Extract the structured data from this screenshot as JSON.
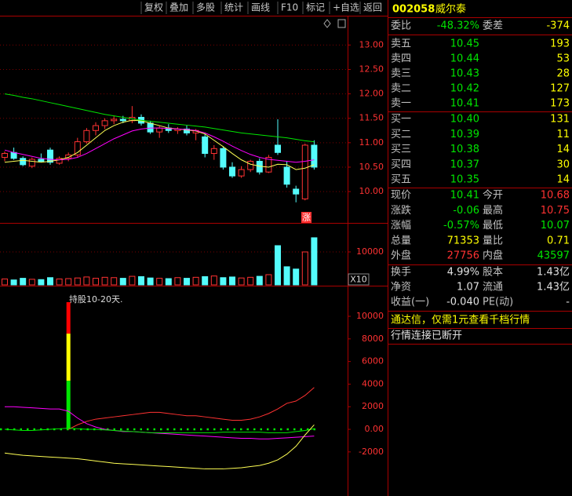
{
  "toolbar": [
    "复权",
    "叠加",
    "多股",
    "统计",
    "画线",
    "F10",
    "标记",
    "+自选",
    "返回"
  ],
  "quote": {
    "code": "002058",
    "name": "威尔泰",
    "ratio": {
      "label": "委比",
      "value": "-48.32%",
      "label2": "委差",
      "value2": "-374"
    },
    "asks": [
      {
        "label": "卖五",
        "price": "10.45",
        "volume": "193"
      },
      {
        "label": "卖四",
        "price": "10.44",
        "volume": "53"
      },
      {
        "label": "卖三",
        "price": "10.43",
        "volume": "28"
      },
      {
        "label": "卖二",
        "price": "10.42",
        "volume": "127"
      },
      {
        "label": "卖一",
        "price": "10.41",
        "volume": "173"
      }
    ],
    "bids": [
      {
        "label": "买一",
        "price": "10.40",
        "volume": "131"
      },
      {
        "label": "买二",
        "price": "10.39",
        "volume": "11"
      },
      {
        "label": "买三",
        "price": "10.38",
        "volume": "14"
      },
      {
        "label": "买四",
        "price": "10.37",
        "volume": "30"
      },
      {
        "label": "买五",
        "price": "10.35",
        "volume": "14"
      }
    ],
    "stats": [
      {
        "label": "现价",
        "value": "10.41",
        "label2": "今开",
        "value2": "10.68"
      },
      {
        "label": "涨跌",
        "value": "-0.06",
        "label2": "最高",
        "value2": "10.75"
      },
      {
        "label": "涨幅",
        "value": "-0.57%",
        "label2": "最低",
        "value2": "10.07"
      },
      {
        "label": "总量",
        "value": "71353",
        "label2": "量比",
        "value2": "0.71"
      },
      {
        "label": "外盘",
        "value": "27756",
        "label2": "内盘",
        "value2": "43597"
      }
    ],
    "info": [
      {
        "label": "换手",
        "value": "4.99%",
        "label2": "股本",
        "value2": "1.43亿"
      },
      {
        "label": "净资",
        "value": "1.07",
        "label2": "流通",
        "value2": "1.43亿"
      },
      {
        "label": "收益(一)",
        "value": "-0.040",
        "label2": "PE(动)",
        "value2": "-"
      }
    ],
    "messages": [
      "通达信，仅需1元查看千档行情",
      "行情连接已断开"
    ]
  },
  "price_chart": {
    "type": "candlestick",
    "ylim": [
      9.375,
      13.6
    ],
    "yticks": [
      {
        "value": 13,
        "label": "13.00"
      },
      {
        "value": 12.5,
        "label": "12.50"
      },
      {
        "value": 12,
        "label": "12.00"
      },
      {
        "value": 11.5,
        "label": "11.50"
      },
      {
        "value": 11,
        "label": "11.00"
      },
      {
        "value": 10.5,
        "label": "10.50"
      },
      {
        "value": 10,
        "label": "10.00"
      }
    ],
    "grid": true,
    "up_color": "#ff3232",
    "down_color": "#54fcfc",
    "marker": "涨",
    "open": [
      10.7,
      10.8,
      10.68,
      10.52,
      10.66,
      10.85,
      10.58,
      10.68,
      10.75,
      11.02,
      11.25,
      11.35,
      11.45,
      11.48,
      11.45,
      11.52,
      11.4,
      11.22,
      11.3,
      11.25,
      11.28,
      11.2,
      11.12,
      10.78,
      10.88,
      10.5,
      10.32,
      10.45,
      10.62,
      10.4,
      10.95,
      10.5,
      10.05,
      9.85,
      10.95
    ],
    "high": [
      10.82,
      10.9,
      10.72,
      10.7,
      10.78,
      10.9,
      10.72,
      10.8,
      11.1,
      11.3,
      11.42,
      11.5,
      11.55,
      11.55,
      11.75,
      11.58,
      11.45,
      11.35,
      11.38,
      11.32,
      11.35,
      11.28,
      11.18,
      10.95,
      10.92,
      10.6,
      10.52,
      10.65,
      10.68,
      10.75,
      11.48,
      10.62,
      10.12,
      10.98,
      11.05
    ],
    "low": [
      10.62,
      10.65,
      10.52,
      10.48,
      10.6,
      10.55,
      10.55,
      10.62,
      10.7,
      10.98,
      11.15,
      11.28,
      11.38,
      11.4,
      11.4,
      11.35,
      11.18,
      11.1,
      11.2,
      11.18,
      11.15,
      11.05,
      10.7,
      10.65,
      10.45,
      10.28,
      10.28,
      10.4,
      10.35,
      10.38,
      10.75,
      10.08,
      9.78,
      9.82,
      10.45
    ],
    "close": [
      10.78,
      10.68,
      10.55,
      10.66,
      10.62,
      10.6,
      10.68,
      10.75,
      11.02,
      11.25,
      11.35,
      11.45,
      11.48,
      11.45,
      11.52,
      11.4,
      11.22,
      11.3,
      11.25,
      11.28,
      11.2,
      11.25,
      10.78,
      10.88,
      10.5,
      10.32,
      10.45,
      10.62,
      10.4,
      10.7,
      10.8,
      10.15,
      9.95,
      10.95,
      10.5
    ],
    "lines": [
      {
        "color": "#ffff54",
        "values": [
          10.6,
          10.62,
          10.64,
          10.62,
          10.6,
          10.62,
          10.65,
          10.7,
          10.8,
          10.95,
          11.1,
          11.25,
          11.35,
          11.42,
          11.46,
          11.45,
          11.4,
          11.35,
          11.3,
          11.28,
          11.26,
          11.24,
          11.18,
          11.05,
          10.92,
          10.78,
          10.65,
          10.56,
          10.52,
          10.5,
          10.56,
          10.55,
          10.45,
          10.48,
          10.55
        ]
      },
      {
        "color": "#ff00ff",
        "values": [
          10.85,
          10.8,
          10.76,
          10.72,
          10.68,
          10.66,
          10.65,
          10.66,
          10.7,
          10.78,
          10.88,
          10.98,
          11.08,
          11.16,
          11.24,
          11.28,
          11.3,
          11.3,
          11.29,
          11.28,
          11.27,
          11.25,
          11.2,
          11.12,
          11.03,
          10.93,
          10.84,
          10.76,
          10.7,
          10.66,
          10.64,
          10.62,
          10.6,
          10.62,
          10.65
        ]
      },
      {
        "color": "#00e600",
        "values": [
          12.0,
          11.97,
          11.93,
          11.9,
          11.86,
          11.82,
          11.78,
          11.74,
          11.7,
          11.66,
          11.62,
          11.58,
          11.55,
          11.52,
          11.49,
          11.46,
          11.44,
          11.42,
          11.4,
          11.38,
          11.36,
          11.34,
          11.32,
          11.29,
          11.26,
          11.23,
          11.2,
          11.18,
          11.16,
          11.14,
          11.12,
          11.1,
          11.07,
          11.04,
          11.02
        ]
      }
    ]
  },
  "volume_chart": {
    "type": "bar",
    "ylim": [
      0,
      18570
    ],
    "yticks": [
      10000
    ],
    "unit": "X10",
    "values": [
      1800,
      1500,
      2000,
      1700,
      1600,
      2200,
      1800,
      1900,
      2100,
      2400,
      2000,
      2300,
      2200,
      2000,
      2600,
      2500,
      2100,
      2000,
      1900,
      2200,
      2000,
      2300,
      2500,
      2700,
      2200,
      2400,
      2100,
      2300,
      2600,
      3100,
      11900,
      5500,
      4800,
      10000,
      14300
    ]
  },
  "indicator_chart": {
    "type": "line",
    "ylim": [
      -5900,
      12640
    ],
    "yticks": [
      10000,
      8000,
      6000,
      4000,
      2000,
      {
        "value": 0,
        "label": "0.00"
      },
      -2000
    ],
    "zero_color": "#00e600",
    "annotation": "持股10-20天.",
    "bar": {
      "index": 7,
      "segments": [
        {
          "color": "#00e600",
          "value": 4300
        },
        {
          "color": "#ffff00",
          "value": 4170
        },
        {
          "color": "#ff0000",
          "value": 2780
        }
      ]
    },
    "series": [
      {
        "color": "#ff3232",
        "values": [
          null,
          null,
          null,
          null,
          null,
          null,
          null,
          0,
          400,
          700,
          900,
          1000,
          1100,
          1200,
          1300,
          1400,
          1500,
          1500,
          1400,
          1300,
          1200,
          1200,
          1100,
          1000,
          900,
          800,
          800,
          900,
          1100,
          1400,
          1800,
          2300,
          2500,
          3000,
          3700
        ]
      },
      {
        "color": "#ff00ff",
        "values": [
          2000,
          2000,
          1950,
          1900,
          1850,
          1800,
          1800,
          1600,
          1000,
          500,
          200,
          0,
          -100,
          -200,
          -200,
          -250,
          -300,
          -350,
          -400,
          -450,
          -500,
          -550,
          -600,
          -650,
          -700,
          -750,
          -800,
          -800,
          -850,
          -850,
          -800,
          -750,
          -700,
          -650,
          -600
        ]
      },
      {
        "color": "#00e600",
        "values": [
          0,
          -50,
          -100,
          -100,
          -50,
          0,
          50,
          100,
          50,
          0,
          0,
          -50,
          -100,
          -150,
          -200,
          -250,
          -300,
          -300,
          -300,
          -300,
          -300,
          -300,
          -300,
          -300,
          -250,
          -250,
          -250,
          -250,
          -250,
          -300,
          -300,
          -300,
          -200,
          -100,
          50
        ]
      },
      {
        "color": "#ffff54",
        "values": [
          -2100,
          -2200,
          -2300,
          -2350,
          -2400,
          -2450,
          -2500,
          -2550,
          -2600,
          -2700,
          -2800,
          -2900,
          -3000,
          -3050,
          -3100,
          -3150,
          -3200,
          -3250,
          -3300,
          -3350,
          -3400,
          -3450,
          -3500,
          -3500,
          -3500,
          -3450,
          -3400,
          -3300,
          -3200,
          -3000,
          -2700,
          -2200,
          -1500,
          -500,
          400
        ]
      }
    ]
  }
}
